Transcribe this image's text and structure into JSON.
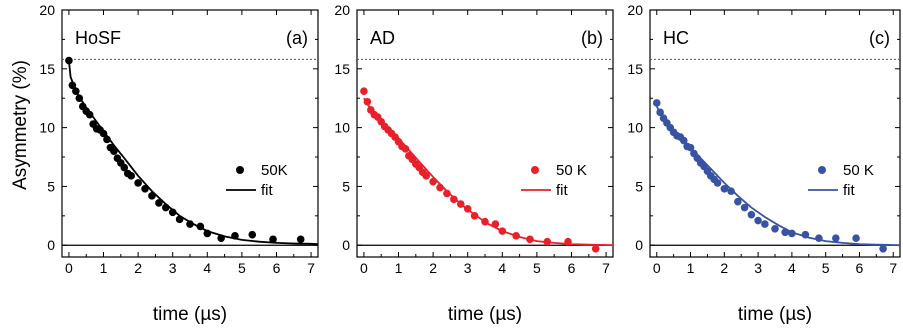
{
  "figure": {
    "ylabel": "Asymmetry (%)",
    "xlabel": "time (µs)"
  },
  "chart_data": [
    {
      "type": "scatter",
      "panel_label": "(a)",
      "sample": "HoSF",
      "xlabel": "time (µs)",
      "ylabel": "Asymmetry (%)",
      "xlim": [
        -0.2,
        7.2
      ],
      "ylim": [
        -1,
        20
      ],
      "xticks": [
        0,
        1,
        2,
        3,
        4,
        5,
        6,
        7
      ],
      "yticks": [
        0,
        5,
        10,
        15,
        20
      ],
      "reference_line_y": 15.8,
      "zero_line_y": 0,
      "grid": false,
      "legend_placement": "center-right",
      "series": [
        {
          "name": "50K",
          "kind": "points",
          "color": "#000000",
          "x": [
            0.0,
            0.1,
            0.2,
            0.3,
            0.4,
            0.5,
            0.6,
            0.7,
            0.8,
            0.9,
            1.0,
            1.1,
            1.2,
            1.3,
            1.4,
            1.5,
            1.6,
            1.7,
            1.8,
            2.0,
            2.2,
            2.4,
            2.6,
            2.8,
            3.0,
            3.2,
            3.5,
            3.8,
            4.0,
            4.4,
            4.8,
            5.3,
            5.9,
            6.7
          ],
          "y": [
            15.7,
            13.6,
            13.1,
            12.5,
            11.8,
            11.4,
            11.1,
            10.3,
            9.9,
            9.8,
            9.5,
            9.0,
            8.3,
            8.0,
            7.4,
            7.0,
            6.6,
            6.1,
            5.9,
            5.3,
            4.8,
            4.2,
            3.6,
            3.2,
            2.8,
            2.2,
            1.8,
            1.6,
            1.0,
            0.6,
            0.8,
            0.9,
            0.5,
            0.5
          ]
        },
        {
          "name": "fit",
          "kind": "curve",
          "color": "#000000",
          "x": [
            0.0,
            0.05,
            0.1,
            0.2,
            0.3,
            0.5,
            0.7,
            1.0,
            1.3,
            1.6,
            2.0,
            2.4,
            2.8,
            3.2,
            3.6,
            4.0,
            4.5,
            5.0,
            5.5,
            6.0,
            6.5,
            7.0,
            7.2
          ],
          "y": [
            15.7,
            14.3,
            13.9,
            13.2,
            12.6,
            11.7,
            10.9,
            9.7,
            8.5,
            7.4,
            5.9,
            4.6,
            3.5,
            2.5,
            1.8,
            1.2,
            0.75,
            0.45,
            0.3,
            0.2,
            0.15,
            0.12,
            0.1
          ]
        }
      ]
    },
    {
      "type": "scatter",
      "panel_label": "(b)",
      "sample": "AD",
      "xlabel": "time (µs)",
      "ylabel": "",
      "xlim": [
        -0.2,
        7.2
      ],
      "ylim": [
        -1,
        20
      ],
      "xticks": [
        0,
        1,
        2,
        3,
        4,
        5,
        6,
        7
      ],
      "yticks": [
        0,
        5,
        10,
        15,
        20
      ],
      "reference_line_y": 15.8,
      "zero_line_y": 0,
      "grid": false,
      "legend_placement": "center-right",
      "series": [
        {
          "name": "50 K",
          "kind": "points",
          "color": "#e8202a",
          "x": [
            0.0,
            0.1,
            0.2,
            0.3,
            0.4,
            0.5,
            0.6,
            0.7,
            0.8,
            0.9,
            1.0,
            1.1,
            1.2,
            1.3,
            1.4,
            1.5,
            1.6,
            1.7,
            1.8,
            2.0,
            2.2,
            2.4,
            2.6,
            2.8,
            3.0,
            3.2,
            3.5,
            3.8,
            4.0,
            4.4,
            4.8,
            5.3,
            5.9,
            6.7
          ],
          "y": [
            13.1,
            12.2,
            11.5,
            11.1,
            10.9,
            10.5,
            10.1,
            9.8,
            9.5,
            9.2,
            8.8,
            8.4,
            8.2,
            7.6,
            7.3,
            6.9,
            6.6,
            6.2,
            5.9,
            5.4,
            4.9,
            4.4,
            3.9,
            3.5,
            3.1,
            2.5,
            2.0,
            1.8,
            1.2,
            0.8,
            0.5,
            0.3,
            0.3,
            -0.3
          ]
        },
        {
          "name": "fit",
          "kind": "curve",
          "color": "#e8202a",
          "x": [
            0.0,
            0.1,
            0.2,
            0.3,
            0.5,
            0.7,
            1.0,
            1.3,
            1.6,
            2.0,
            2.4,
            2.8,
            3.2,
            3.6,
            4.0,
            4.5,
            5.0,
            5.5,
            6.0,
            6.5,
            7.0,
            7.2
          ],
          "y": [
            12.5,
            12.0,
            11.6,
            11.2,
            10.6,
            10.0,
            9.1,
            8.1,
            7.1,
            5.8,
            4.6,
            3.5,
            2.6,
            1.8,
            1.2,
            0.7,
            0.35,
            0.2,
            0.1,
            0.05,
            0.02,
            0.0
          ]
        }
      ]
    },
    {
      "type": "scatter",
      "panel_label": "(c)",
      "sample": "HC",
      "xlabel": "time (µs)",
      "ylabel": "",
      "xlim": [
        -0.2,
        7.2
      ],
      "ylim": [
        -1,
        20
      ],
      "xticks": [
        0,
        1,
        2,
        3,
        4,
        5,
        6,
        7
      ],
      "yticks": [
        0,
        5,
        10,
        15,
        20
      ],
      "reference_line_y": 15.8,
      "zero_line_y": 0,
      "grid": false,
      "legend_placement": "center-right",
      "series": [
        {
          "name": "50 K",
          "kind": "points",
          "color": "#3953a4",
          "x": [
            0.0,
            0.1,
            0.2,
            0.3,
            0.4,
            0.5,
            0.6,
            0.7,
            0.8,
            0.9,
            1.0,
            1.1,
            1.2,
            1.3,
            1.4,
            1.5,
            1.6,
            1.7,
            1.8,
            2.0,
            2.2,
            2.4,
            2.6,
            2.8,
            3.0,
            3.2,
            3.5,
            3.8,
            4.0,
            4.4,
            4.8,
            5.3,
            5.9,
            6.7
          ],
          "y": [
            12.1,
            11.3,
            10.8,
            10.4,
            10.0,
            9.6,
            9.3,
            9.2,
            8.9,
            8.4,
            8.3,
            7.8,
            7.4,
            7.0,
            6.7,
            6.3,
            5.9,
            5.6,
            5.3,
            4.8,
            4.6,
            3.7,
            3.2,
            2.6,
            2.1,
            1.8,
            1.4,
            1.1,
            1.0,
            0.9,
            0.6,
            0.6,
            0.6,
            -0.3
          ]
        },
        {
          "name": "fit",
          "kind": "curve",
          "color": "#3953a4",
          "x": [
            0.0,
            0.1,
            0.2,
            0.3,
            0.5,
            0.7,
            1.0,
            1.3,
            1.6,
            2.0,
            2.4,
            2.8,
            3.2,
            3.6,
            4.0,
            4.5,
            5.0,
            5.5,
            6.0,
            6.5,
            7.0,
            7.2
          ],
          "y": [
            11.8,
            11.2,
            10.8,
            10.4,
            9.8,
            9.2,
            8.3,
            7.4,
            6.5,
            5.3,
            4.2,
            3.2,
            2.4,
            1.7,
            1.1,
            0.65,
            0.35,
            0.2,
            0.1,
            0.05,
            0.02,
            0.0
          ]
        }
      ]
    }
  ]
}
